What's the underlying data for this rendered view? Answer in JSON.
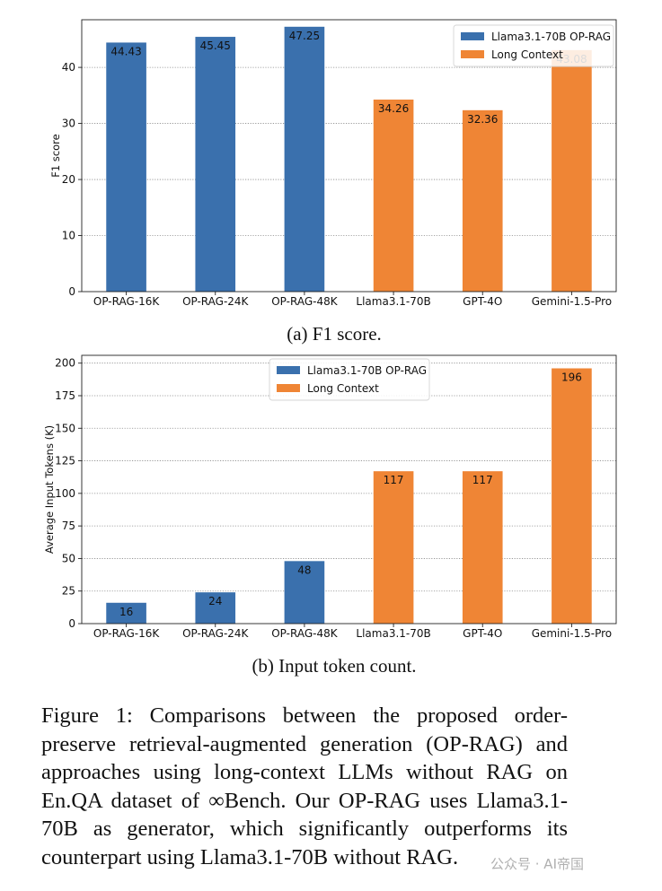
{
  "chart_data": [
    {
      "type": "bar",
      "categories": [
        "OP-RAG-16K",
        "OP-RAG-24K",
        "OP-RAG-48K",
        "Llama3.1-70B",
        "GPT-4O",
        "Gemini-1.5-Pro"
      ],
      "values": [
        44.43,
        45.45,
        47.25,
        34.26,
        32.36,
        43.08
      ],
      "value_labels": [
        "44.43",
        "45.45",
        "47.25",
        "34.26",
        "32.36",
        "43.08"
      ],
      "groups": [
        "Llama3.1-70B OP-RAG",
        "Llama3.1-70B OP-RAG",
        "Llama3.1-70B OP-RAG",
        "Long Context",
        "Long Context",
        "Long Context"
      ],
      "legend": [
        {
          "name": "Llama3.1-70B OP-RAG",
          "color": "#3a70ad"
        },
        {
          "name": "Long Context",
          "color": "#ef8535"
        }
      ],
      "legend_position": "top-right",
      "ylabel": "F1 score",
      "ylim": [
        0,
        48.5
      ],
      "yticks": [
        0,
        10,
        20,
        30,
        40
      ],
      "ytick_labels": [
        "0",
        "10",
        "20",
        "30",
        "40"
      ],
      "grid": true,
      "caption": "(a) F1 score."
    },
    {
      "type": "bar",
      "categories": [
        "OP-RAG-16K",
        "OP-RAG-24K",
        "OP-RAG-48K",
        "Llama3.1-70B",
        "GPT-4O",
        "Gemini-1.5-Pro"
      ],
      "values": [
        16,
        24,
        48,
        117,
        117,
        196
      ],
      "value_labels": [
        "16",
        "24",
        "48",
        "117",
        "117",
        "196"
      ],
      "groups": [
        "Llama3.1-70B OP-RAG",
        "Llama3.1-70B OP-RAG",
        "Llama3.1-70B OP-RAG",
        "Long Context",
        "Long Context",
        "Long Context"
      ],
      "legend": [
        {
          "name": "Llama3.1-70B OP-RAG",
          "color": "#3a70ad"
        },
        {
          "name": "Long Context",
          "color": "#ef8535"
        }
      ],
      "legend_position": "top-center",
      "ylabel": "Average Input Tokens (K)",
      "ylim": [
        0,
        206
      ],
      "yticks": [
        0,
        25,
        50,
        75,
        100,
        125,
        150,
        175,
        200
      ],
      "ytick_labels": [
        "0",
        "25",
        "50",
        "75",
        "100",
        "125",
        "150",
        "175",
        "200"
      ],
      "grid": true,
      "caption": "(b) Input token count."
    }
  ],
  "figure_caption": "Figure 1: Comparisons between the proposed order-preserve retrieval-augmented generation (OP-RAG) and approaches using long-context LLMs without RAG on En.QA dataset of ∞Bench. Our OP-RAG uses Llama3.1-70B as generator, which significantly outperforms its counterpart using Llama3.1-70B without RAG.",
  "watermark": "公众号 · AI帝国"
}
